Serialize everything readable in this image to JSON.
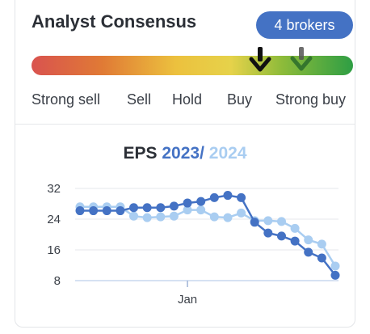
{
  "header": {
    "title": "Analyst Consensus",
    "badge": "4 brokers"
  },
  "consensus": {
    "scale_labels": [
      "Strong sell",
      "Sell",
      "Hold",
      "Buy",
      "Strong buy"
    ],
    "current_level": 0.71,
    "previous_level": 0.84,
    "colors": {
      "current_marker": "#111111",
      "previous_marker": "#555555"
    }
  },
  "eps": {
    "label": "EPS",
    "year1": "2023",
    "separator": "/",
    "year2": "2024",
    "colors": {
      "year1": "#4472c4",
      "year2": "#a9cdf1"
    }
  },
  "chart_data": {
    "type": "line",
    "yticks": [
      "32",
      "24",
      "16",
      "8"
    ],
    "ylim": [
      8,
      32
    ],
    "x_tick_labels": [
      {
        "label": "Jan",
        "index": 8
      }
    ],
    "series": [
      {
        "name": "2023",
        "color": "#4472c4",
        "values": [
          26.2,
          26.2,
          26.2,
          26.2,
          27.0,
          27.0,
          27.0,
          27.4,
          28.2,
          28.6,
          29.6,
          30.2,
          29.6,
          23.2,
          20.4,
          19.6,
          18.3,
          15.4,
          13.9,
          9.4
        ]
      },
      {
        "name": "2024",
        "color": "#a9cdf1",
        "values": [
          27.2,
          27.2,
          27.2,
          27.2,
          24.8,
          24.4,
          24.6,
          24.8,
          26.4,
          26.4,
          24.6,
          24.4,
          25.6,
          23.6,
          23.6,
          23.4,
          21.6,
          18.6,
          17.5,
          11.8
        ]
      }
    ]
  }
}
